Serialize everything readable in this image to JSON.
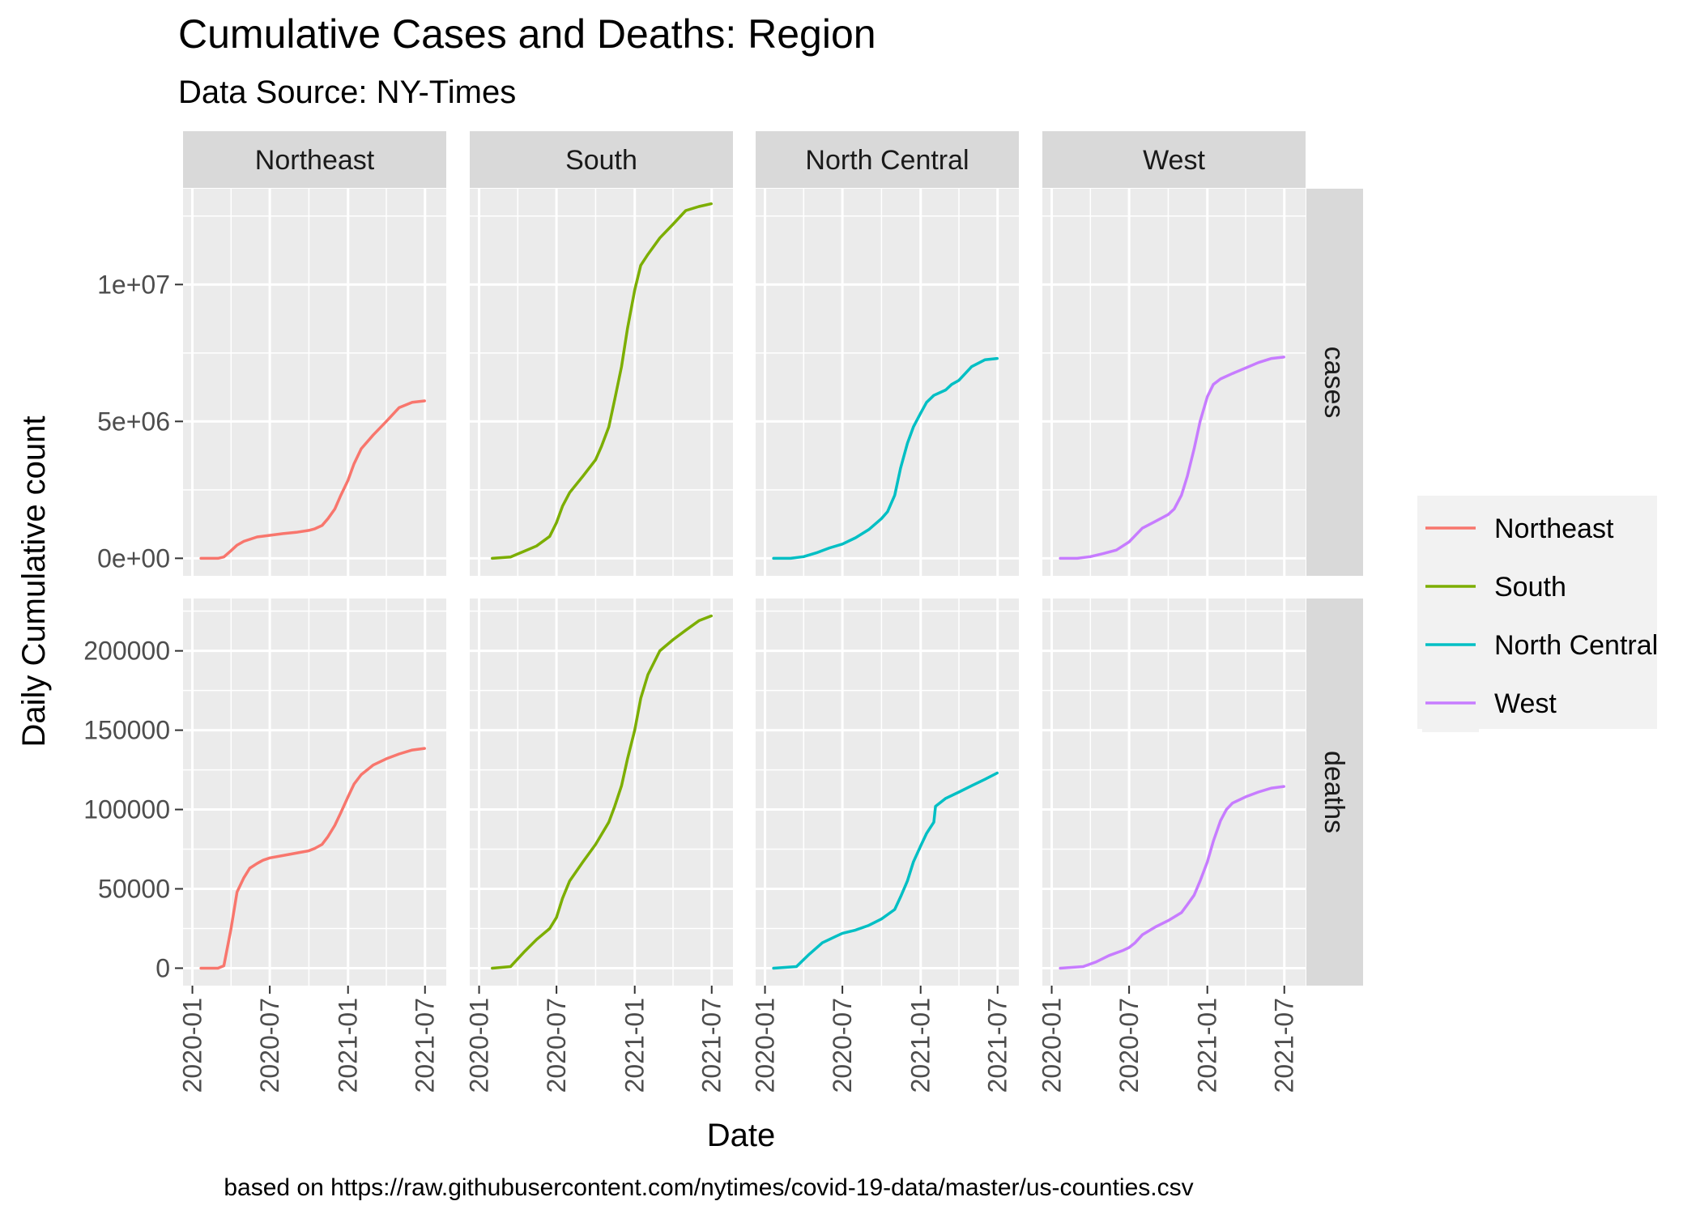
{
  "chart_data": {
    "type": "line",
    "title": "Cumulative Cases and Deaths: Region",
    "subtitle": "Data Source: NY-Times",
    "xlabel": "Date",
    "ylabel": "Daily Cumulative count",
    "caption": "based on https://raw.githubusercontent.com/nytimes/covid-19-data/master/us-counties.csv",
    "facet_columns": [
      "Northeast",
      "South",
      "North Central",
      "West"
    ],
    "facet_rows": [
      "cases",
      "deaths"
    ],
    "x_ticks": [
      "2020-01",
      "2020-07",
      "2021-01",
      "2021-07"
    ],
    "y_ticks": {
      "cases": [
        {
          "value": 0,
          "label": "0e+00"
        },
        {
          "value": 5000000,
          "label": "5e+06"
        },
        {
          "value": 10000000,
          "label": "1e+07"
        }
      ],
      "deaths": [
        {
          "value": 0,
          "label": "0"
        },
        {
          "value": 50000,
          "label": "50000"
        },
        {
          "value": 100000,
          "label": "100000"
        },
        {
          "value": 150000,
          "label": "150000"
        },
        {
          "value": 200000,
          "label": "200000"
        }
      ]
    },
    "xlim": [
      "2019-12-10",
      "2021-08-20"
    ],
    "ylim": {
      "cases": [
        -640000,
        13500000
      ],
      "deaths": [
        -11000,
        233000
      ]
    },
    "legend": {
      "position": "right",
      "entries": [
        "Northeast",
        "South",
        "North Central",
        "West"
      ]
    },
    "grid": true,
    "colors": {
      "Northeast": "#F8766D",
      "South": "#7CAE00",
      "North Central": "#00BFC4",
      "West": "#C77CFF",
      "panel_bg": "#EBEBEB",
      "strip_bg": "#D9D9D9",
      "grid": "#FFFFFF",
      "legend_bg": "#F2F2F2"
    },
    "series": {
      "cases": [
        {
          "name": "Northeast",
          "x": [
            "2020-01-21",
            "2020-03-01",
            "2020-03-15",
            "2020-04-01",
            "2020-04-15",
            "2020-05-01",
            "2020-06-01",
            "2020-07-01",
            "2020-08-01",
            "2020-09-01",
            "2020-10-01",
            "2020-10-15",
            "2020-11-01",
            "2020-11-15",
            "2020-12-01",
            "2020-12-15",
            "2021-01-01",
            "2021-01-15",
            "2021-02-01",
            "2021-03-01",
            "2021-04-01",
            "2021-05-01",
            "2021-06-01",
            "2021-06-30"
          ],
          "y": [
            0,
            0,
            50000,
            280000,
            480000,
            620000,
            780000,
            840000,
            900000,
            950000,
            1020000,
            1080000,
            1200000,
            1450000,
            1800000,
            2300000,
            2850000,
            3450000,
            4000000,
            4500000,
            5000000,
            5500000,
            5700000,
            5750000
          ]
        },
        {
          "name": "South",
          "x": [
            "2020-02-01",
            "2020-03-15",
            "2020-04-15",
            "2020-05-15",
            "2020-06-15",
            "2020-07-01",
            "2020-07-15",
            "2020-08-01",
            "2020-09-01",
            "2020-10-01",
            "2020-10-15",
            "2020-11-01",
            "2020-11-15",
            "2020-12-01",
            "2020-12-15",
            "2021-01-01",
            "2021-01-15",
            "2021-02-01",
            "2021-03-01",
            "2021-04-01",
            "2021-05-01",
            "2021-06-01",
            "2021-06-30"
          ],
          "y": [
            0,
            50000,
            250000,
            450000,
            800000,
            1300000,
            1900000,
            2400000,
            3000000,
            3600000,
            4100000,
            4800000,
            5800000,
            7000000,
            8400000,
            9800000,
            10700000,
            11100000,
            11700000,
            12200000,
            12700000,
            12850000,
            12950000
          ]
        },
        {
          "name": "North Central",
          "x": [
            "2020-01-21",
            "2020-03-01",
            "2020-04-01",
            "2020-05-01",
            "2020-06-01",
            "2020-07-01",
            "2020-08-01",
            "2020-09-01",
            "2020-10-01",
            "2020-10-15",
            "2020-11-01",
            "2020-11-15",
            "2020-12-01",
            "2020-12-15",
            "2021-01-01",
            "2021-01-15",
            "2021-02-01",
            "2021-03-01",
            "2021-03-15",
            "2021-04-01",
            "2021-05-01",
            "2021-06-01",
            "2021-06-30"
          ],
          "y": [
            0,
            0,
            60000,
            200000,
            380000,
            520000,
            750000,
            1050000,
            1450000,
            1700000,
            2300000,
            3300000,
            4200000,
            4800000,
            5300000,
            5700000,
            5950000,
            6150000,
            6350000,
            6500000,
            7000000,
            7250000,
            7300000
          ]
        },
        {
          "name": "West",
          "x": [
            "2020-01-21",
            "2020-03-01",
            "2020-04-01",
            "2020-05-01",
            "2020-06-01",
            "2020-07-01",
            "2020-08-01",
            "2020-09-01",
            "2020-10-01",
            "2020-10-15",
            "2020-11-01",
            "2020-11-15",
            "2020-12-01",
            "2020-12-15",
            "2021-01-01",
            "2021-01-15",
            "2021-02-01",
            "2021-03-01",
            "2021-04-01",
            "2021-05-01",
            "2021-06-01",
            "2021-06-30"
          ],
          "y": [
            0,
            0,
            60000,
            170000,
            300000,
            600000,
            1100000,
            1350000,
            1600000,
            1800000,
            2300000,
            3000000,
            4000000,
            5000000,
            5900000,
            6350000,
            6550000,
            6750000,
            6950000,
            7150000,
            7300000,
            7350000
          ]
        }
      ],
      "deaths": [
        {
          "name": "Northeast",
          "x": [
            "2020-01-21",
            "2020-03-01",
            "2020-03-15",
            "2020-04-01",
            "2020-04-15",
            "2020-05-01",
            "2020-05-15",
            "2020-06-01",
            "2020-06-15",
            "2020-07-01",
            "2020-08-01",
            "2020-09-01",
            "2020-10-01",
            "2020-10-15",
            "2020-11-01",
            "2020-11-15",
            "2020-12-01",
            "2020-12-15",
            "2021-01-01",
            "2021-01-15",
            "2021-02-01",
            "2021-03-01",
            "2021-04-01",
            "2021-05-01",
            "2021-06-01",
            "2021-06-30"
          ],
          "y": [
            0,
            0,
            1500,
            25000,
            48000,
            57000,
            63000,
            66000,
            68000,
            69500,
            71000,
            72500,
            74000,
            75500,
            78000,
            83000,
            90000,
            98000,
            108000,
            116000,
            122000,
            128000,
            132000,
            135000,
            137500,
            138500
          ]
        },
        {
          "name": "South",
          "x": [
            "2020-02-01",
            "2020-03-15",
            "2020-04-15",
            "2020-05-15",
            "2020-06-15",
            "2020-07-01",
            "2020-07-15",
            "2020-08-01",
            "2020-09-01",
            "2020-10-01",
            "2020-11-01",
            "2020-11-15",
            "2020-12-01",
            "2020-12-15",
            "2021-01-01",
            "2021-01-15",
            "2021-02-01",
            "2021-03-01",
            "2021-04-01",
            "2021-05-01",
            "2021-06-01",
            "2021-06-30"
          ],
          "y": [
            0,
            1000,
            10000,
            18000,
            25000,
            32000,
            44000,
            55000,
            67000,
            78000,
            92000,
            102000,
            115000,
            132000,
            150000,
            170000,
            185000,
            200000,
            207000,
            213000,
            219000,
            222000
          ]
        },
        {
          "name": "North Central",
          "x": [
            "2020-01-21",
            "2020-03-15",
            "2020-04-15",
            "2020-05-15",
            "2020-06-15",
            "2020-07-01",
            "2020-08-01",
            "2020-09-01",
            "2020-10-01",
            "2020-11-01",
            "2020-11-15",
            "2020-12-01",
            "2020-12-15",
            "2021-01-01",
            "2021-01-15",
            "2021-02-01",
            "2021-02-05",
            "2021-03-01",
            "2021-04-01",
            "2021-05-01",
            "2021-06-01",
            "2021-06-30"
          ],
          "y": [
            0,
            1000,
            9000,
            16000,
            20000,
            22000,
            24000,
            27000,
            31000,
            37000,
            45000,
            55000,
            67000,
            77000,
            85000,
            92000,
            102000,
            107000,
            111000,
            115000,
            119000,
            123000
          ]
        },
        {
          "name": "West",
          "x": [
            "2020-01-21",
            "2020-03-15",
            "2020-04-15",
            "2020-05-15",
            "2020-06-15",
            "2020-07-01",
            "2020-07-15",
            "2020-08-01",
            "2020-09-01",
            "2020-10-01",
            "2020-11-01",
            "2020-11-15",
            "2020-12-01",
            "2020-12-15",
            "2021-01-01",
            "2021-01-15",
            "2021-02-01",
            "2021-02-15",
            "2021-03-01",
            "2021-04-01",
            "2021-05-01",
            "2021-06-01",
            "2021-06-30"
          ],
          "y": [
            0,
            1000,
            4000,
            8000,
            11000,
            13000,
            16000,
            21000,
            26000,
            30000,
            35000,
            40000,
            46000,
            55000,
            67000,
            80000,
            93000,
            100000,
            104000,
            108000,
            111000,
            113500,
            114500
          ]
        }
      ]
    }
  }
}
